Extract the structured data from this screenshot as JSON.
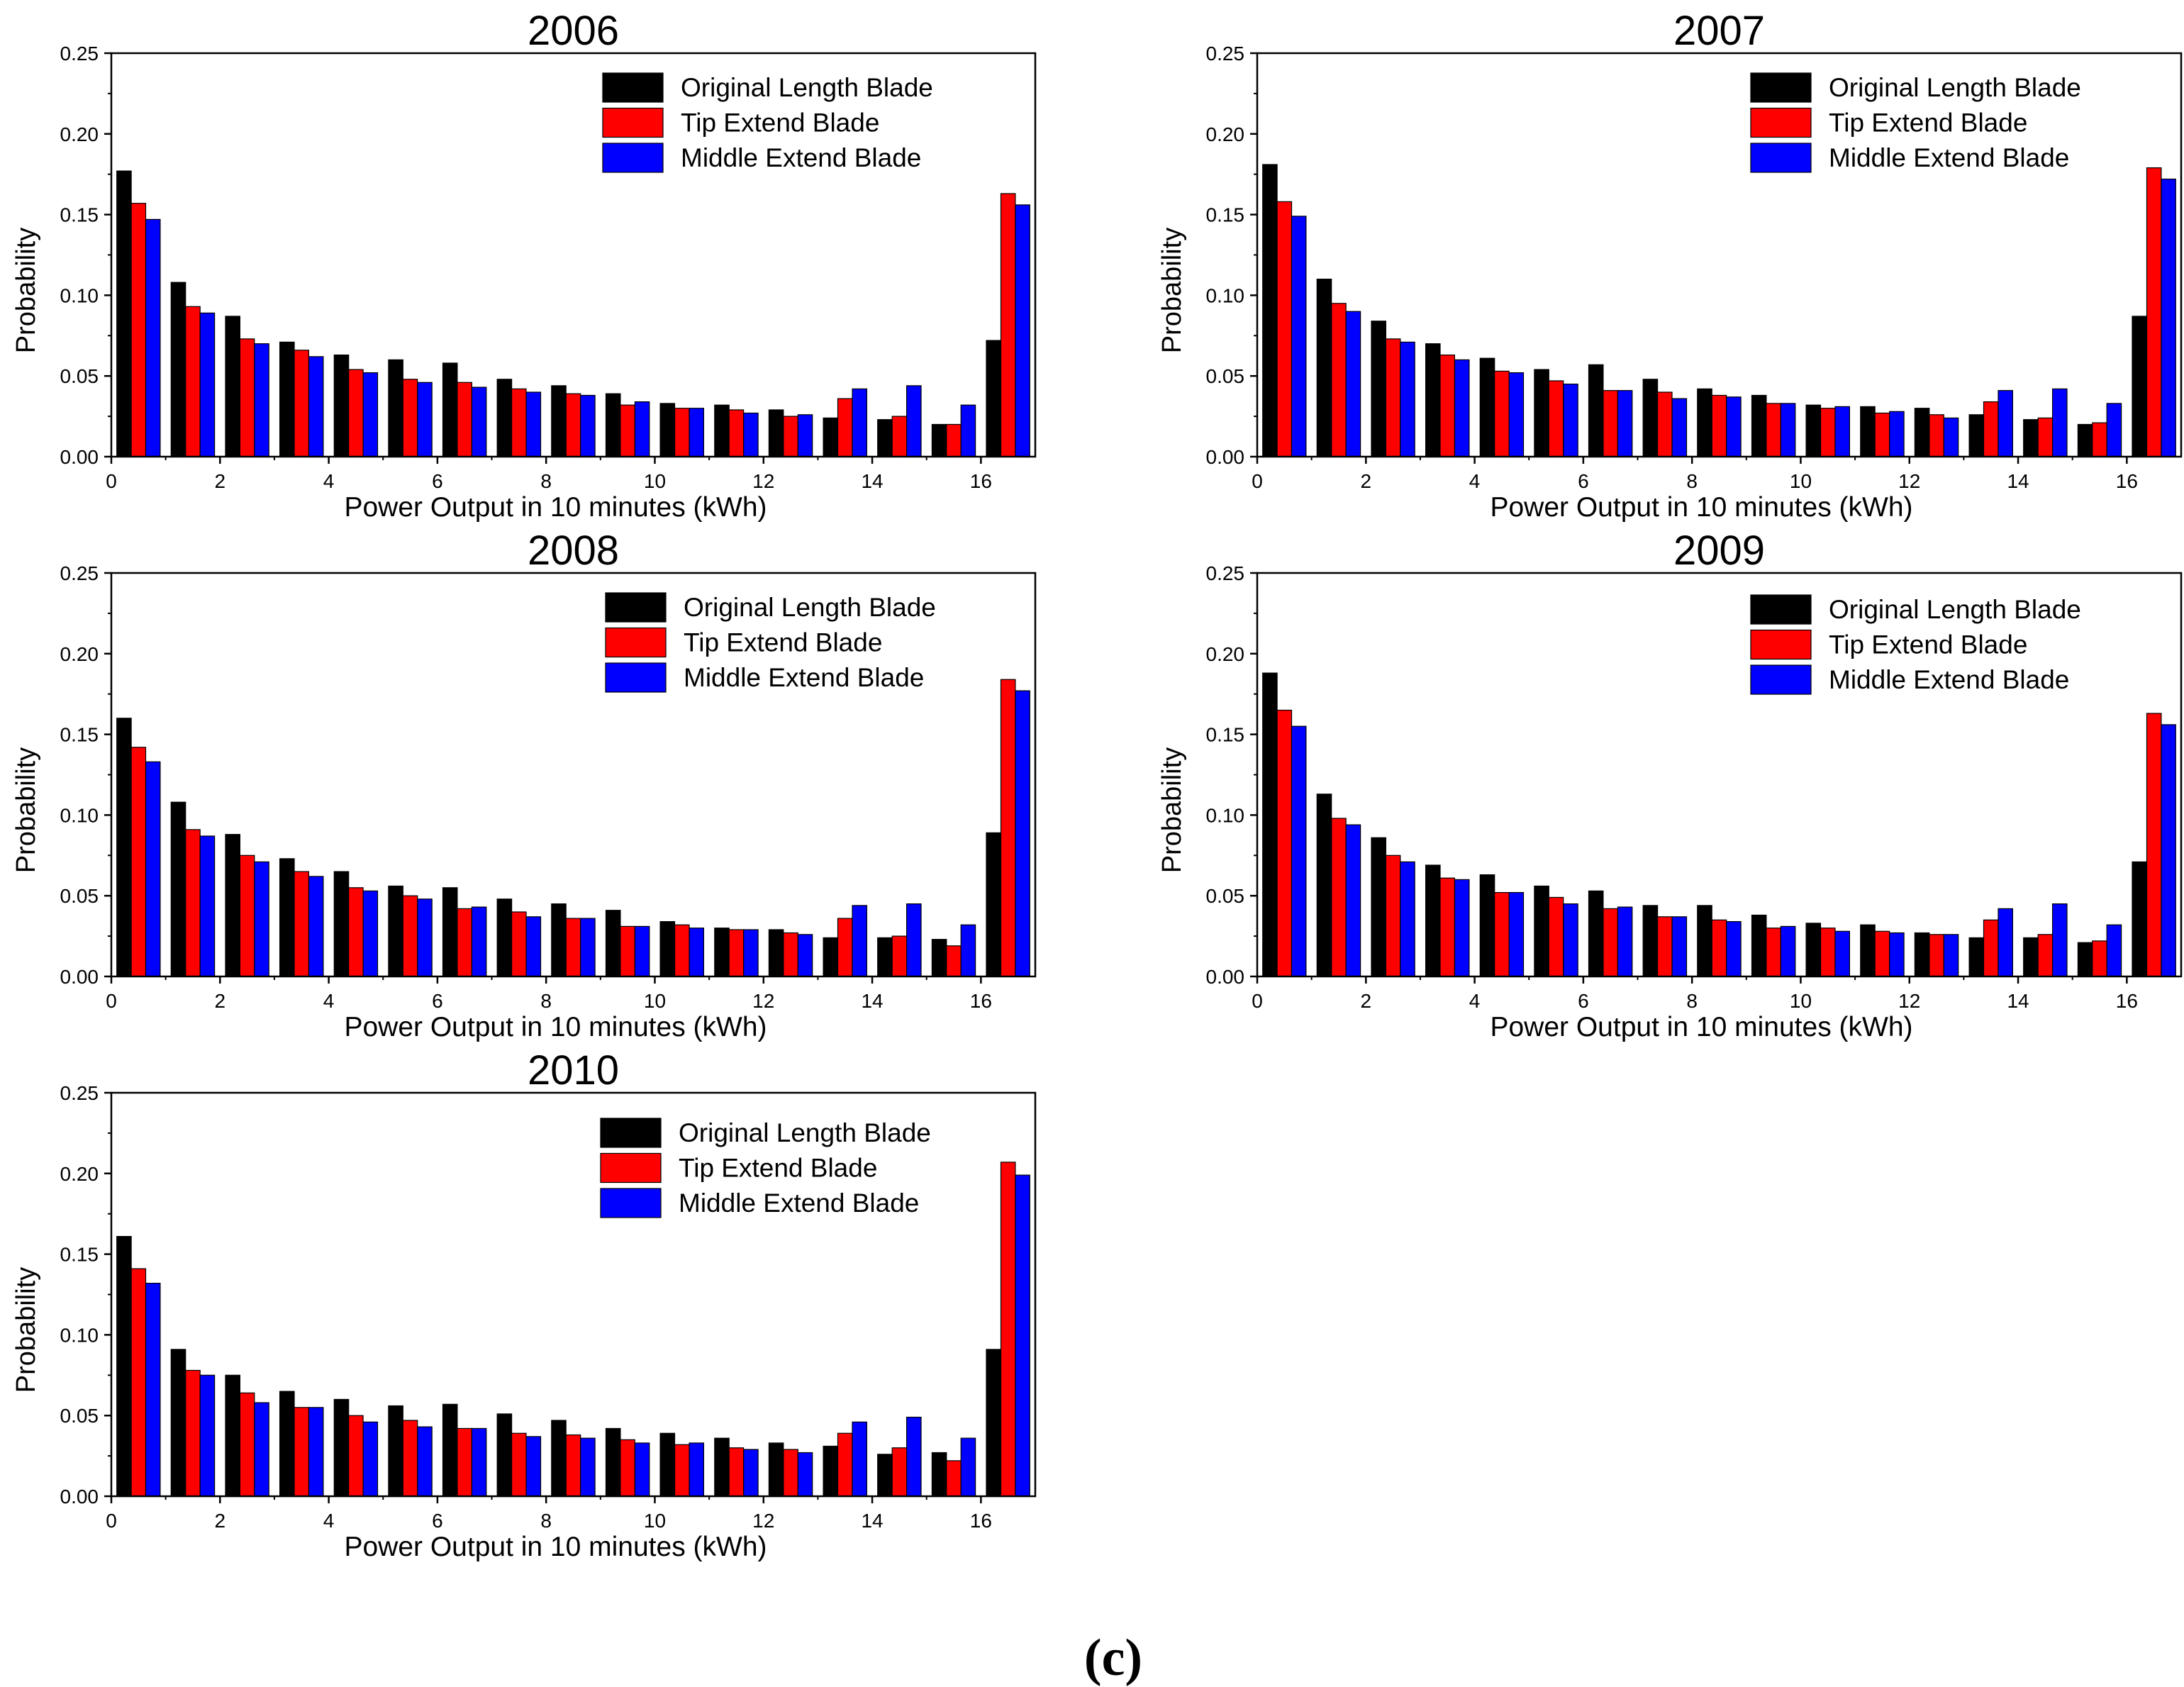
{
  "figure_label": "(c)",
  "colors": {
    "Original Length Blade": "#000000",
    "Tip Extend Blade": "#ff0000",
    "Middle Extend Blade": "#0000ff"
  },
  "chart_data": [
    {
      "type": "bar",
      "title": "2006",
      "xlabel": "Power Output in 10 minutes (kWh)",
      "ylabel": "Probability",
      "xlim": [
        0,
        17
      ],
      "ylim": [
        0,
        0.25
      ],
      "xticks": [
        "0",
        "2",
        "4",
        "6",
        "8",
        "10",
        "12",
        "14",
        "16"
      ],
      "yticks": [
        "0.00",
        "0.05",
        "0.10",
        "0.15",
        "0.20",
        "0.25"
      ],
      "legend_position": "top-right",
      "categories": [
        0.5,
        1.5,
        2.5,
        3.5,
        4.5,
        5.5,
        6.5,
        7.5,
        8.5,
        9.5,
        10.5,
        11.5,
        12.5,
        13.5,
        14.5,
        15.5,
        16.5
      ],
      "series": [
        {
          "name": "Original Length Blade",
          "values": [
            0.177,
            0.108,
            0.087,
            0.071,
            0.063,
            0.06,
            0.058,
            0.048,
            0.044,
            0.039,
            0.033,
            0.032,
            0.029,
            0.024,
            0.023,
            0.02,
            0.072
          ]
        },
        {
          "name": "Tip Extend Blade",
          "values": [
            0.157,
            0.093,
            0.073,
            0.066,
            0.054,
            0.048,
            0.046,
            0.042,
            0.039,
            0.032,
            0.03,
            0.029,
            0.025,
            0.036,
            0.025,
            0.02,
            0.163
          ]
        },
        {
          "name": "Middle Extend Blade",
          "values": [
            0.147,
            0.089,
            0.07,
            0.062,
            0.052,
            0.046,
            0.043,
            0.04,
            0.038,
            0.034,
            0.03,
            0.027,
            0.026,
            0.042,
            0.044,
            0.032,
            0.156
          ]
        }
      ]
    },
    {
      "type": "bar",
      "title": "2007",
      "xlabel": "Power Output in 10 minutes (kWh)",
      "ylabel": "Probability",
      "xlim": [
        0,
        17
      ],
      "ylim": [
        0,
        0.25
      ],
      "xticks": [
        "0",
        "2",
        "4",
        "6",
        "8",
        "10",
        "12",
        "14",
        "16"
      ],
      "yticks": [
        "0.00",
        "0.05",
        "0.10",
        "0.15",
        "0.20",
        "0.25"
      ],
      "legend_position": "top-right",
      "categories": [
        0.5,
        1.5,
        2.5,
        3.5,
        4.5,
        5.5,
        6.5,
        7.5,
        8.5,
        9.5,
        10.5,
        11.5,
        12.5,
        13.5,
        14.5,
        15.5,
        16.5
      ],
      "series": [
        {
          "name": "Original Length Blade",
          "values": [
            0.181,
            0.11,
            0.084,
            0.07,
            0.061,
            0.054,
            0.057,
            0.048,
            0.042,
            0.038,
            0.032,
            0.031,
            0.03,
            0.026,
            0.023,
            0.02,
            0.087
          ]
        },
        {
          "name": "Tip Extend Blade",
          "values": [
            0.158,
            0.095,
            0.073,
            0.063,
            0.053,
            0.047,
            0.041,
            0.04,
            0.038,
            0.033,
            0.03,
            0.027,
            0.026,
            0.034,
            0.024,
            0.021,
            0.179
          ]
        },
        {
          "name": "Middle Extend Blade",
          "values": [
            0.149,
            0.09,
            0.071,
            0.06,
            0.052,
            0.045,
            0.041,
            0.036,
            0.037,
            0.033,
            0.031,
            0.028,
            0.024,
            0.041,
            0.042,
            0.033,
            0.172
          ]
        }
      ]
    },
    {
      "type": "bar",
      "title": "2008",
      "xlabel": "Power Output in 10 minutes (kWh)",
      "ylabel": "Probability",
      "xlim": [
        0,
        17
      ],
      "ylim": [
        0,
        0.25
      ],
      "xticks": [
        "0",
        "2",
        "4",
        "6",
        "8",
        "10",
        "12",
        "14",
        "16"
      ],
      "yticks": [
        "0.00",
        "0.05",
        "0.10",
        "0.15",
        "0.20",
        "0.25"
      ],
      "legend_position": "top-right",
      "categories": [
        0.5,
        1.5,
        2.5,
        3.5,
        4.5,
        5.5,
        6.5,
        7.5,
        8.5,
        9.5,
        10.5,
        11.5,
        12.5,
        13.5,
        14.5,
        15.5,
        16.5
      ],
      "series": [
        {
          "name": "Original Length Blade",
          "values": [
            0.16,
            0.108,
            0.088,
            0.073,
            0.065,
            0.056,
            0.055,
            0.048,
            0.045,
            0.041,
            0.034,
            0.03,
            0.029,
            0.024,
            0.024,
            0.023,
            0.089
          ]
        },
        {
          "name": "Tip Extend Blade",
          "values": [
            0.142,
            0.091,
            0.075,
            0.065,
            0.055,
            0.05,
            0.042,
            0.04,
            0.036,
            0.031,
            0.032,
            0.029,
            0.027,
            0.036,
            0.025,
            0.019,
            0.184
          ]
        },
        {
          "name": "Middle Extend Blade",
          "values": [
            0.133,
            0.087,
            0.071,
            0.062,
            0.053,
            0.048,
            0.043,
            0.037,
            0.036,
            0.031,
            0.03,
            0.029,
            0.026,
            0.044,
            0.045,
            0.032,
            0.177
          ]
        }
      ]
    },
    {
      "type": "bar",
      "title": "2009",
      "xlabel": "Power Output in 10 minutes (kWh)",
      "ylabel": "Probability",
      "xlim": [
        0,
        17
      ],
      "ylim": [
        0,
        0.25
      ],
      "xticks": [
        "0",
        "2",
        "4",
        "6",
        "8",
        "10",
        "12",
        "14",
        "16"
      ],
      "yticks": [
        "0.00",
        "0.05",
        "0.10",
        "0.15",
        "0.20",
        "0.25"
      ],
      "legend_position": "top-right",
      "categories": [
        0.5,
        1.5,
        2.5,
        3.5,
        4.5,
        5.5,
        6.5,
        7.5,
        8.5,
        9.5,
        10.5,
        11.5,
        12.5,
        13.5,
        14.5,
        15.5,
        16.5
      ],
      "series": [
        {
          "name": "Original Length Blade",
          "values": [
            0.188,
            0.113,
            0.086,
            0.069,
            0.063,
            0.056,
            0.053,
            0.044,
            0.044,
            0.038,
            0.033,
            0.032,
            0.027,
            0.024,
            0.024,
            0.021,
            0.071
          ]
        },
        {
          "name": "Tip Extend Blade",
          "values": [
            0.165,
            0.098,
            0.075,
            0.061,
            0.052,
            0.049,
            0.042,
            0.037,
            0.035,
            0.03,
            0.03,
            0.028,
            0.026,
            0.035,
            0.026,
            0.022,
            0.163
          ]
        },
        {
          "name": "Middle Extend Blade",
          "values": [
            0.155,
            0.094,
            0.071,
            0.06,
            0.052,
            0.045,
            0.043,
            0.037,
            0.034,
            0.031,
            0.028,
            0.027,
            0.026,
            0.042,
            0.045,
            0.032,
            0.156
          ]
        }
      ]
    },
    {
      "type": "bar",
      "title": "2010",
      "xlabel": "Power Output in 10 minutes (kWh)",
      "ylabel": "Probability",
      "xlim": [
        0,
        17
      ],
      "ylim": [
        0,
        0.25
      ],
      "xticks": [
        "0",
        "2",
        "4",
        "6",
        "8",
        "10",
        "12",
        "14",
        "16"
      ],
      "yticks": [
        "0.00",
        "0.05",
        "0.10",
        "0.15",
        "0.20",
        "0.25"
      ],
      "legend_position": "top-right",
      "categories": [
        0.5,
        1.5,
        2.5,
        3.5,
        4.5,
        5.5,
        6.5,
        7.5,
        8.5,
        9.5,
        10.5,
        11.5,
        12.5,
        13.5,
        14.5,
        15.5,
        16.5
      ],
      "series": [
        {
          "name": "Original Length Blade",
          "values": [
            0.161,
            0.091,
            0.075,
            0.065,
            0.06,
            0.056,
            0.057,
            0.051,
            0.047,
            0.042,
            0.039,
            0.036,
            0.033,
            0.031,
            0.026,
            0.027,
            0.091
          ]
        },
        {
          "name": "Tip Extend Blade",
          "values": [
            0.141,
            0.078,
            0.064,
            0.055,
            0.05,
            0.047,
            0.042,
            0.039,
            0.038,
            0.035,
            0.032,
            0.03,
            0.029,
            0.039,
            0.03,
            0.022,
            0.207
          ]
        },
        {
          "name": "Middle Extend Blade",
          "values": [
            0.132,
            0.075,
            0.058,
            0.055,
            0.046,
            0.043,
            0.042,
            0.037,
            0.036,
            0.033,
            0.033,
            0.029,
            0.027,
            0.046,
            0.049,
            0.036,
            0.199
          ]
        }
      ]
    }
  ]
}
